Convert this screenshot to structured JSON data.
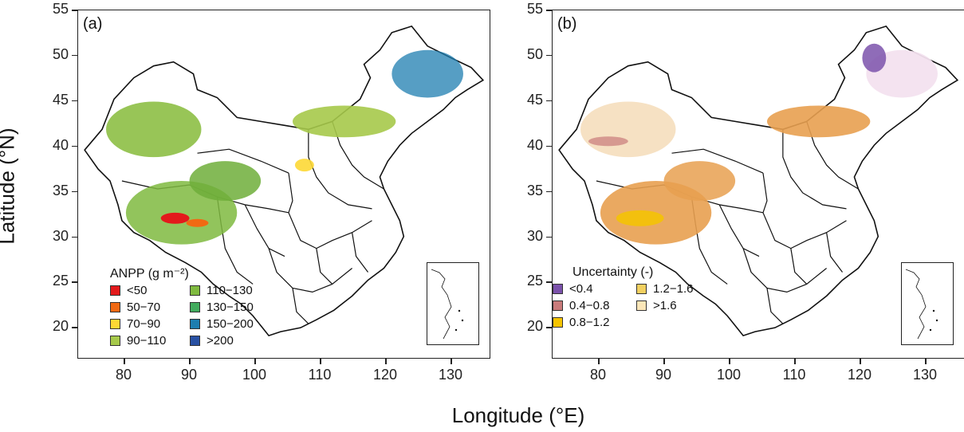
{
  "figure": {
    "y_axis_title": "Latitude (°N)",
    "x_axis_title": "Longitude (°E)",
    "y_ticks": [
      "55",
      "50",
      "45",
      "40",
      "35",
      "30",
      "25",
      "20"
    ],
    "x_ticks": [
      "80",
      "90",
      "100",
      "110",
      "120",
      "130"
    ]
  },
  "panel_a": {
    "label": "(a)",
    "legend_title": "ANPP (g m⁻²)",
    "legend_items": [
      {
        "label": "<50",
        "color": "#e31a1c"
      },
      {
        "label": "50−70",
        "color": "#f16913"
      },
      {
        "label": "70−90",
        "color": "#fdd835"
      },
      {
        "label": "90−110",
        "color": "#a6c94a"
      },
      {
        "label": "110−130",
        "color": "#7fba3f"
      },
      {
        "label": "130−150",
        "color": "#41ab5d"
      },
      {
        "label": "150−200",
        "color": "#1d7eb0"
      },
      {
        "label": ">200",
        "color": "#2851a3"
      }
    ]
  },
  "panel_b": {
    "label": "(b)",
    "legend_title": "Uncertainty (-)",
    "legend_items": [
      {
        "label": "<0.4",
        "color": "#7b52ab"
      },
      {
        "label": "0.4−0.8",
        "color": "#c97b7b"
      },
      {
        "label": "0.8−1.2",
        "color": "#f5c400"
      },
      {
        "label": "1.2−1.6",
        "color": "#f2d060"
      },
      {
        "label": ">1.6",
        "color": "#fbe6b8"
      }
    ]
  },
  "map_colors": {
    "outline": "#111111",
    "a_west": "#8dbf45",
    "a_plateau": "#6fae3a",
    "a_red": "#e31a1c",
    "a_orange": "#f16913",
    "a_northeast": "#1d7eb0",
    "b_main": "#e8a050",
    "b_yellow": "#f5c400",
    "b_pink": "#c97b7b",
    "b_purple": "#7b52ab",
    "b_pale": "#f6dfc0"
  }
}
